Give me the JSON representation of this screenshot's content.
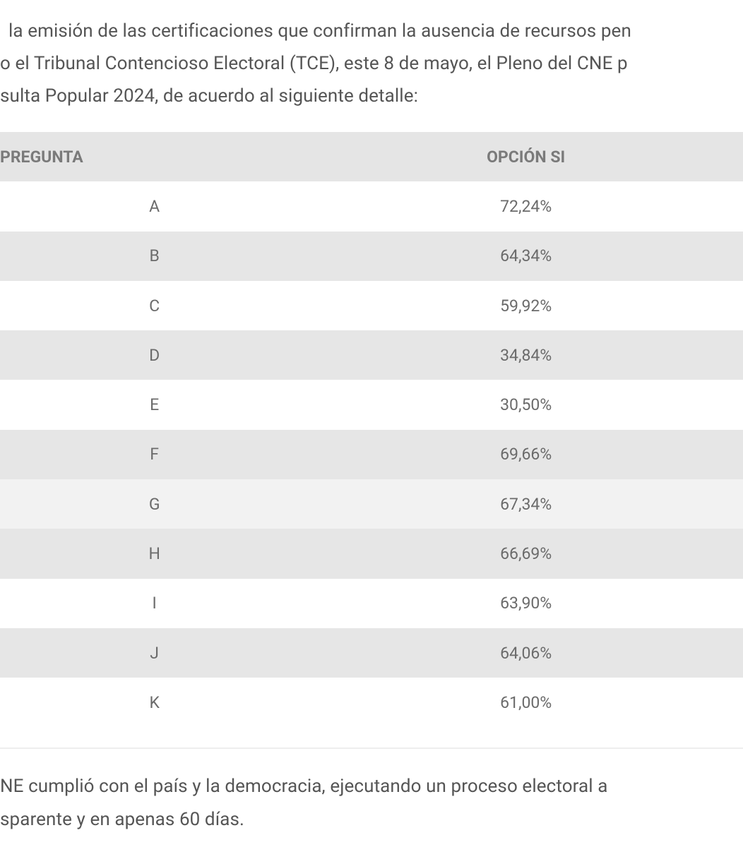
{
  "paragraph_1": {
    "lines": [
      "la emisión de las certificaciones que confirman la ausencia de recursos pen",
      "o el Tribunal Contencioso Electoral (TCE), este 8 de mayo, el Pleno del CNE p",
      "sulta Popular 2024, de acuerdo al siguiente detalle:"
    ]
  },
  "table": {
    "header": [
      "PREGUNTA",
      "OPCIÓN SI"
    ],
    "rows": [
      [
        "A",
        "72,24%"
      ],
      [
        "B",
        "64,34%"
      ],
      [
        "C",
        "59,92%"
      ],
      [
        "D",
        "34,84%"
      ],
      [
        "E",
        "30,50%"
      ],
      [
        "F",
        "69,66%"
      ],
      [
        "G",
        "67,34%"
      ],
      [
        "H",
        "66,69%"
      ],
      [
        "I",
        "63,90%"
      ],
      [
        "J",
        "64,06%"
      ],
      [
        "K",
        "61,00%"
      ]
    ]
  },
  "paragraph_2": {
    "lines": [
      "NE cumplió con el país y la democracia, ejecutando un proceso electoral a",
      "sparente y en apenas 60 días."
    ]
  }
}
